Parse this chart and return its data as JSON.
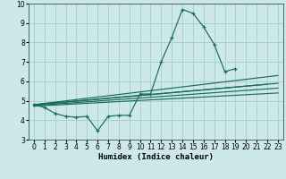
{
  "xlabel": "Humidex (Indice chaleur)",
  "xlim": [
    -0.5,
    23.5
  ],
  "ylim": [
    3,
    10
  ],
  "xticks": [
    0,
    1,
    2,
    3,
    4,
    5,
    6,
    7,
    8,
    9,
    10,
    11,
    12,
    13,
    14,
    15,
    16,
    17,
    18,
    19,
    20,
    21,
    22,
    23
  ],
  "yticks": [
    3,
    4,
    5,
    6,
    7,
    8,
    9,
    10
  ],
  "bg_color": "#cce8ea",
  "grid_color": "#aacfd2",
  "line_color": "#1a6b5a",
  "peaked_series": {
    "x": [
      0,
      1,
      2,
      3,
      4,
      5,
      6,
      7,
      8,
      9,
      10,
      11,
      12,
      13,
      14,
      15,
      16,
      17,
      18,
      19
    ],
    "y": [
      4.8,
      4.65,
      4.35,
      4.2,
      4.15,
      4.2,
      3.45,
      4.2,
      4.25,
      4.25,
      5.35,
      5.35,
      7.0,
      8.25,
      9.7,
      9.5,
      8.8,
      7.9,
      6.5,
      6.65
    ]
  },
  "line_series": [
    {
      "x": [
        0,
        23
      ],
      "y": [
        4.8,
        6.3
      ]
    },
    {
      "x": [
        0,
        23
      ],
      "y": [
        4.78,
        5.9
      ]
    },
    {
      "x": [
        0,
        23
      ],
      "y": [
        4.75,
        5.65
      ]
    },
    {
      "x": [
        0,
        23
      ],
      "y": [
        4.72,
        5.4
      ]
    },
    {
      "x": [
        0,
        22
      ],
      "y": [
        4.8,
        5.85
      ],
      "end_marker": true
    }
  ]
}
